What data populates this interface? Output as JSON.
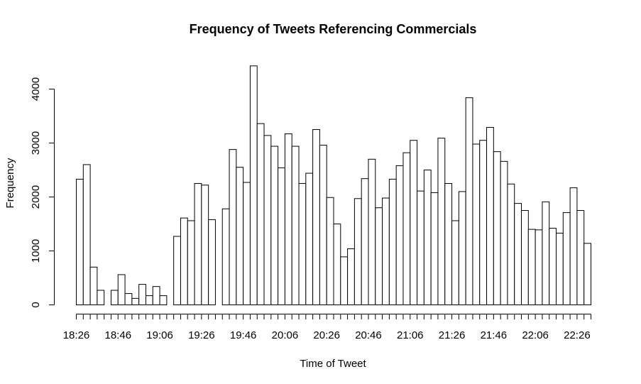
{
  "chart_data": {
    "type": "bar",
    "title": "Frequency of Tweets Referencing Commercials",
    "xlabel": "Time of Tweet",
    "ylabel": "Frequency",
    "ylim": [
      0,
      4500
    ],
    "y_ticks": [
      "0",
      "1000",
      "2000",
      "3000",
      "4000"
    ],
    "x_tick_labels": [
      "18:26",
      "18:46",
      "19:06",
      "19:26",
      "19:46",
      "20:06",
      "20:26",
      "20:46",
      "21:06",
      "21:26",
      "21:46",
      "22:06",
      "22:26"
    ],
    "values": [
      2330,
      2600,
      700,
      270,
      0,
      270,
      560,
      210,
      120,
      380,
      170,
      340,
      170,
      0,
      1270,
      1610,
      1560,
      2250,
      2220,
      1580,
      0,
      1780,
      2880,
      2550,
      2270,
      4430,
      3360,
      3140,
      2940,
      2540,
      3170,
      2940,
      2250,
      2440,
      3250,
      2960,
      1990,
      1500,
      890,
      1040,
      1970,
      2340,
      2700,
      1800,
      1980,
      2330,
      2580,
      2820,
      3050,
      2110,
      2500,
      2080,
      3090,
      2250,
      1560,
      2100,
      3840,
      2980,
      3050,
      3290,
      2840,
      2660,
      2240,
      1880,
      1750,
      1400,
      1390,
      1910,
      1420,
      1330,
      1710,
      2170,
      1750,
      1140
    ],
    "grid": false,
    "legend": "none"
  }
}
